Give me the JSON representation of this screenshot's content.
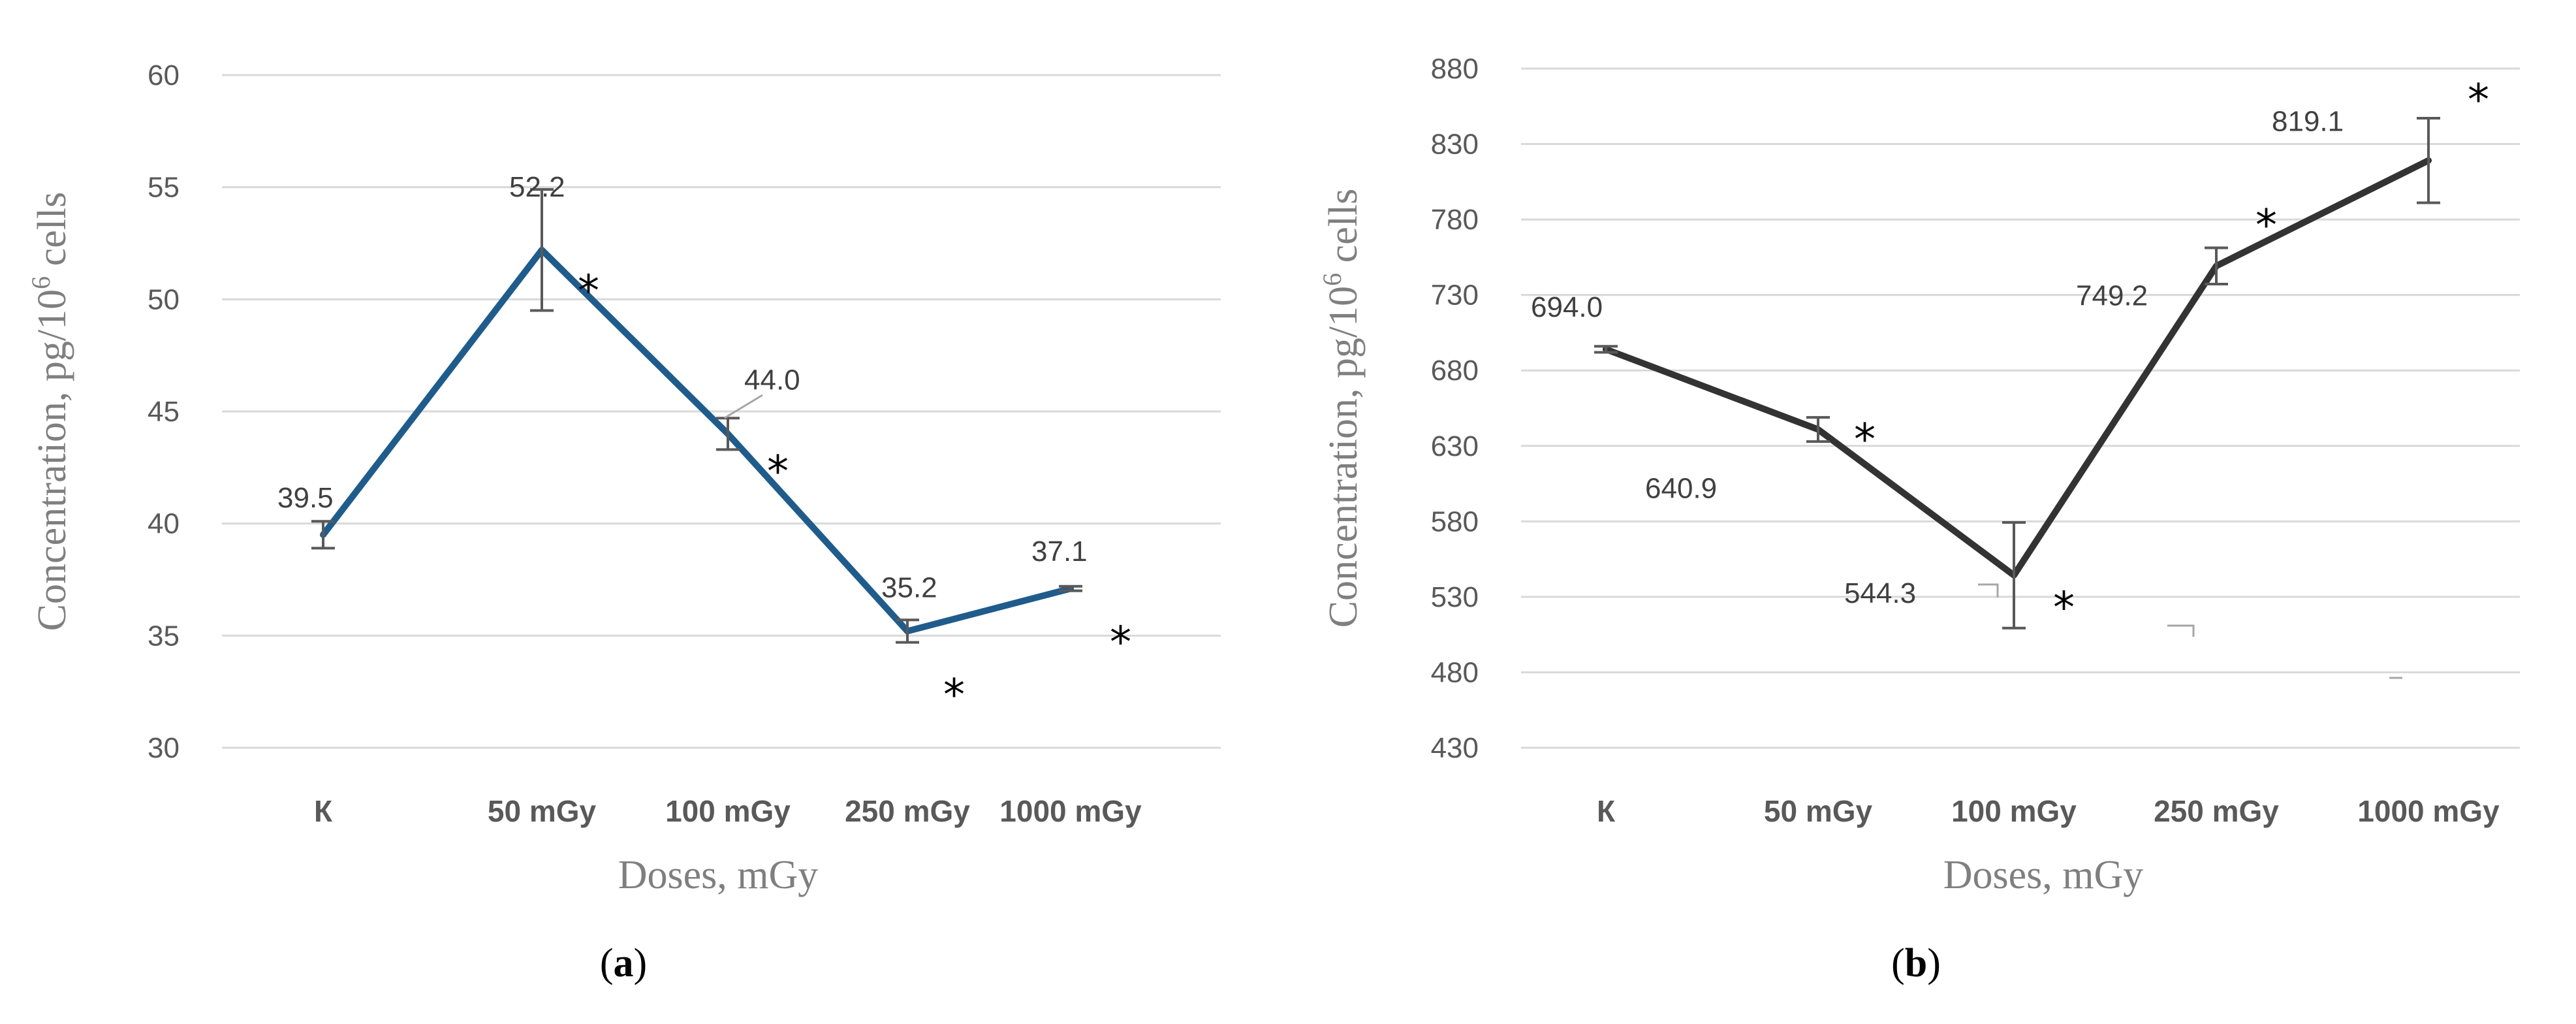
{
  "colors": {
    "series_a": "#1f5c8b",
    "series_b": "#333333",
    "grid": "#d9d9d9",
    "text": "#595959"
  },
  "chart_data": [
    {
      "type": "line",
      "panel_label": "a",
      "categories": [
        "К",
        "50 mGy",
        "100 mGy",
        "250 mGy",
        "1000 mGy"
      ],
      "series": [
        {
          "values": [
            39.5,
            52.2,
            44.0,
            35.2,
            37.1
          ],
          "data_labels": [
            "39.5",
            "52.2",
            "44.0",
            "35.2",
            "37.1"
          ],
          "error": [
            0.6,
            2.7,
            0.7,
            0.5,
            0.1
          ],
          "significant": [
            false,
            true,
            true,
            true,
            true
          ]
        }
      ],
      "yticks": [
        "30",
        "35",
        "40",
        "45",
        "50",
        "55",
        "60"
      ],
      "ylim": [
        30,
        60
      ],
      "xlabel": "Doses, mGy",
      "ylabel": "Concentration, pg/10",
      "ylabel_sup": "6",
      "ylabel_suffix": " cells",
      "grid": true,
      "significance_mark": "*"
    },
    {
      "type": "line",
      "panel_label": "b",
      "categories": [
        "К",
        "50 mGy",
        "100 mGy",
        "250 mGy",
        "1000 mGy"
      ],
      "series": [
        {
          "values": [
            694.0,
            640.9,
            544.3,
            749.2,
            819.1
          ],
          "data_labels": [
            "694.0",
            "640.9",
            "544.3",
            "749.2",
            "819.1"
          ],
          "error": [
            2,
            8,
            35,
            12,
            28
          ],
          "significant": [
            false,
            true,
            true,
            true,
            true
          ]
        }
      ],
      "yticks": [
        "430",
        "480",
        "530",
        "580",
        "630",
        "680",
        "730",
        "780",
        "830",
        "880"
      ],
      "ylim": [
        430,
        880
      ],
      "xlabel": "Doses, mGy",
      "ylabel": "Concentration, pg/10",
      "ylabel_sup": "6",
      "ylabel_suffix": " cells",
      "grid": true,
      "significance_mark": "*"
    }
  ]
}
